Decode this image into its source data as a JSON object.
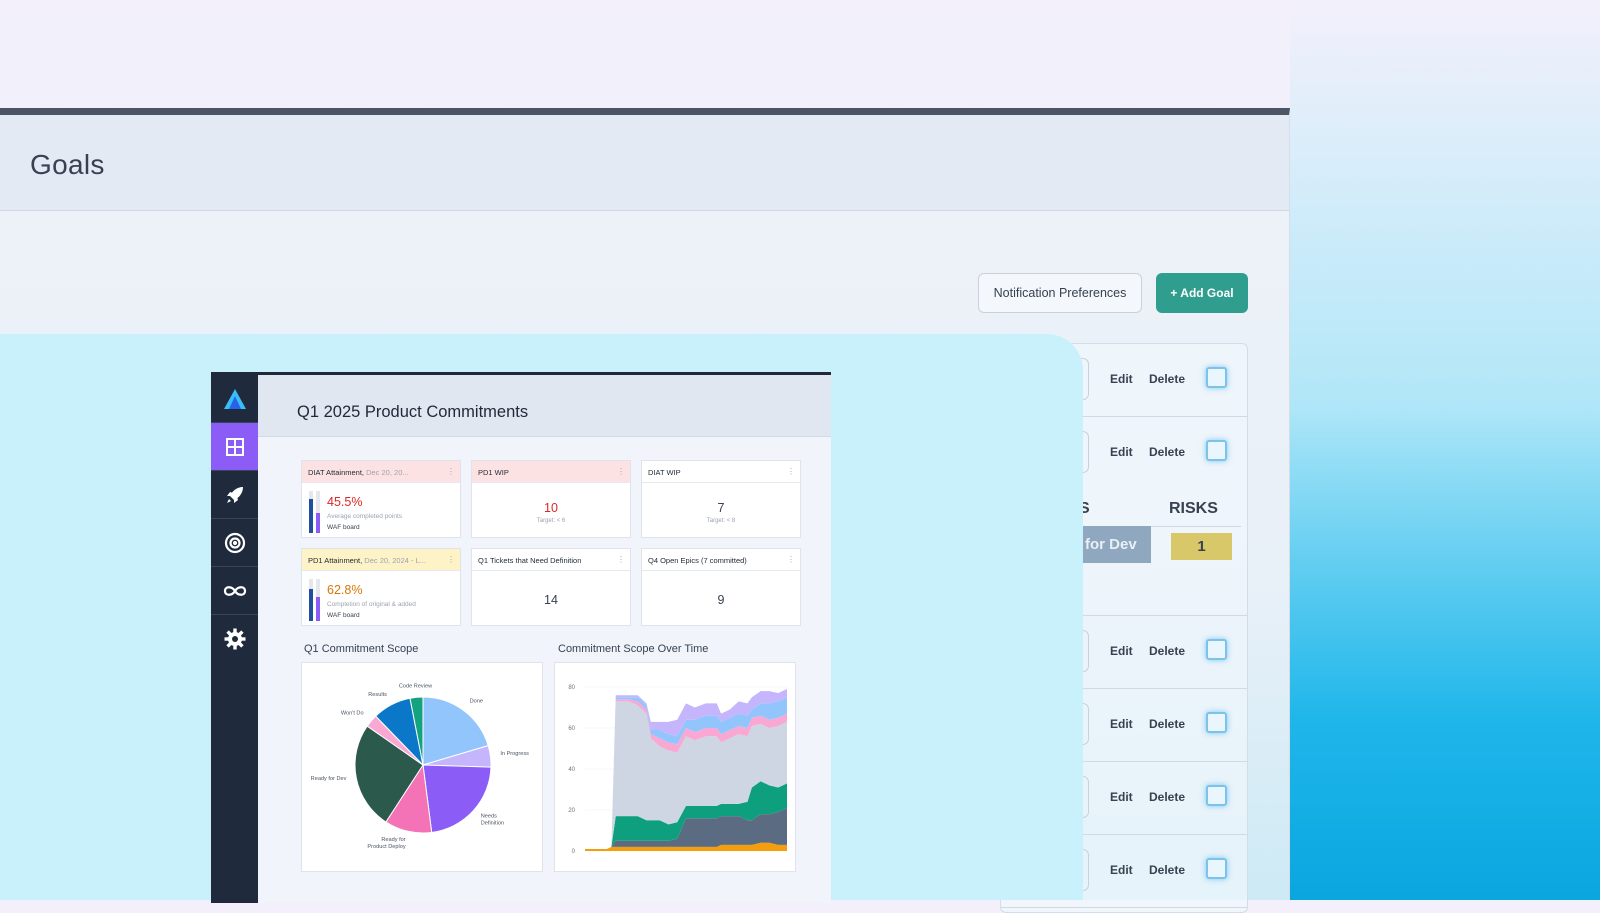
{
  "goals": {
    "title": "Goals",
    "notification_btn": "Notification Preferences",
    "add_goal_btn": "+ Add Goal",
    "row_actions": {
      "edit": "Edit",
      "delete": "Delete"
    },
    "risks": {
      "partial_header": "S",
      "header": "RISKS",
      "status": "for Dev",
      "count": "1"
    }
  },
  "dashboard": {
    "title": "Q1 2025 Product Commitments",
    "sidebar_icons": [
      "logo-icon",
      "grid-icon",
      "rocket-icon",
      "target-icon",
      "infinity-icon",
      "gear-icon"
    ],
    "colors": {
      "accent": "#8b5cf6",
      "sidebar": "#1f2a3c",
      "red": "#dc2626",
      "orange": "#d97706"
    },
    "tiles": {
      "diat_attain": {
        "title": "DIAT Attainment,",
        "date": "Dec 20, 20...",
        "value": "45.5%",
        "desc": "Average completed points",
        "board": "WAF board"
      },
      "pd1_wip": {
        "title": "PD1 WIP",
        "value": "10",
        "target": "Target: < 6"
      },
      "diat_wip": {
        "title": "DIAT WIP",
        "value": "7",
        "target": "Target: < 8"
      },
      "pd1_attain": {
        "title": "PD1 Attainment,",
        "date": "Dec 20, 2024 - L...",
        "value": "62.8%",
        "desc": "Completion of original & added",
        "board": "WAF board"
      },
      "q1_tickets": {
        "title": "Q1 Tickets that Need Definition",
        "value": "14"
      },
      "q4_epics": {
        "title": "Q4 Open Epics (7 committed)",
        "value": "9"
      }
    },
    "pie_title": "Q1 Commitment Scope",
    "area_title": "Commitment Scope Over Time"
  },
  "chart_data": [
    {
      "type": "pie",
      "title": "Q1 Commitment Scope",
      "categories": [
        "Done",
        "In Progress",
        "Needs Definition",
        "Ready for Product Deploy",
        "Ready for Dev",
        "Won't Do",
        "Results",
        "Code Review"
      ],
      "values": [
        20,
        5,
        22,
        11,
        25,
        3,
        9,
        3
      ],
      "colors": [
        "#93c5fd",
        "#c4b5fd",
        "#8b5cf6",
        "#f472b6",
        "#2b5a4c",
        "#f9a8d4",
        "#0a77c9",
        "#14a37f"
      ]
    },
    {
      "type": "area",
      "title": "Commitment Scope Over Time",
      "ylim": [
        0,
        80
      ],
      "yticks": [
        0,
        20,
        40,
        60,
        80
      ],
      "x": [
        0,
        5,
        10,
        12,
        14,
        16,
        18,
        20,
        24,
        28,
        30,
        34,
        38,
        42,
        46,
        50,
        55,
        60,
        62,
        66,
        70,
        74,
        76,
        80,
        84,
        88,
        92
      ],
      "series": [
        {
          "color": "#f59e0b",
          "values": [
            1,
            1,
            1,
            2,
            2,
            2,
            2,
            2,
            2,
            2,
            2,
            2,
            2,
            2,
            2,
            2,
            2,
            2,
            3,
            3,
            3,
            3,
            3,
            4,
            4,
            3,
            3
          ]
        },
        {
          "color": "#5b6b82",
          "values": [
            0,
            0,
            0,
            0,
            3,
            3,
            3,
            3,
            3,
            3,
            3,
            3,
            3,
            4,
            14,
            14,
            14,
            14,
            14,
            14,
            14,
            12,
            12,
            14,
            14,
            16,
            18
          ]
        },
        {
          "color": "#0e9f7e",
          "values": [
            0,
            0,
            0,
            0,
            12,
            12,
            12,
            12,
            12,
            10,
            10,
            10,
            8,
            8,
            6,
            6,
            6,
            6,
            6,
            6,
            6,
            9,
            16,
            16,
            14,
            12,
            12
          ]
        },
        {
          "color": "#cfd6e3",
          "values": [
            0,
            0,
            0,
            0,
            56,
            56,
            56,
            56,
            54,
            52,
            40,
            36,
            36,
            34,
            34,
            32,
            34,
            34,
            30,
            32,
            34,
            32,
            30,
            28,
            28,
            30,
            30
          ]
        },
        {
          "color": "#f9a8d4",
          "values": [
            0,
            0,
            0,
            0,
            1,
            1,
            1,
            1,
            2,
            2,
            2,
            4,
            4,
            4,
            4,
            4,
            4,
            4,
            4,
            4,
            4,
            4,
            4,
            4,
            4,
            4,
            4
          ]
        },
        {
          "color": "#93c5fd",
          "values": [
            0,
            0,
            0,
            0,
            1,
            1,
            1,
            1,
            2,
            2,
            2,
            4,
            4,
            4,
            4,
            6,
            6,
            6,
            6,
            6,
            6,
            6,
            4,
            6,
            8,
            8,
            8
          ]
        },
        {
          "color": "#c4b5fd",
          "values": [
            0,
            0,
            0,
            0,
            1,
            1,
            1,
            1,
            1,
            1,
            4,
            4,
            6,
            8,
            8,
            6,
            6,
            6,
            4,
            4,
            6,
            6,
            6,
            6,
            6,
            4,
            4
          ]
        }
      ]
    }
  ]
}
